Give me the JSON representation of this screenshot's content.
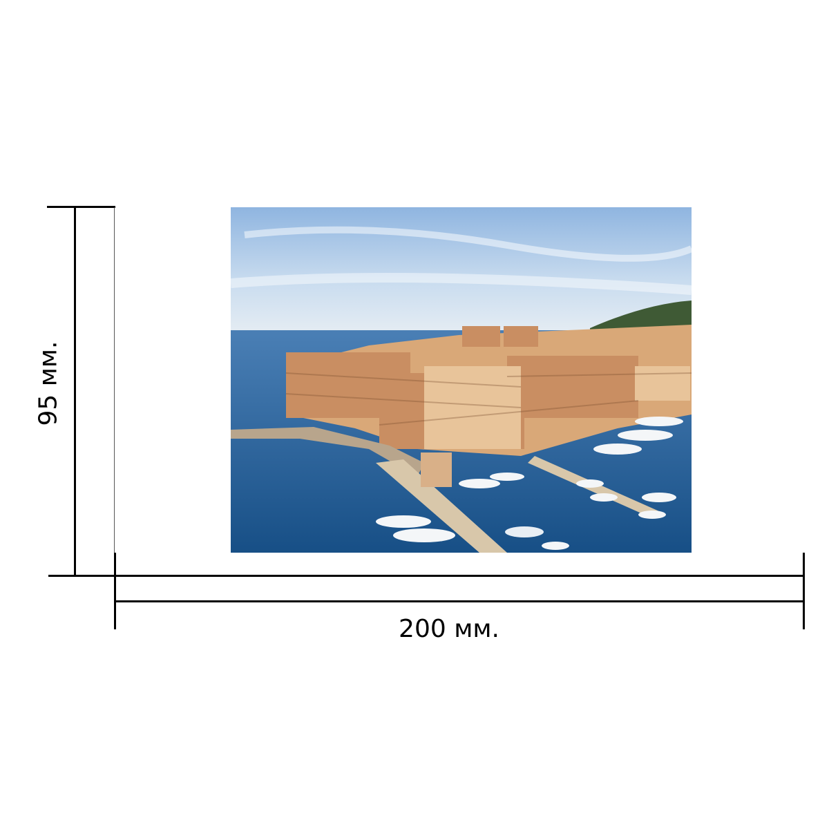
{
  "dimensions": {
    "width_label": "200 мм.",
    "height_label": "95 мм."
  },
  "photo": {
    "subject": "harbor-city-photo",
    "colors": {
      "sky": "#a9c6e6",
      "sea": "#1f5f95",
      "buildings": "#d9a878"
    }
  }
}
